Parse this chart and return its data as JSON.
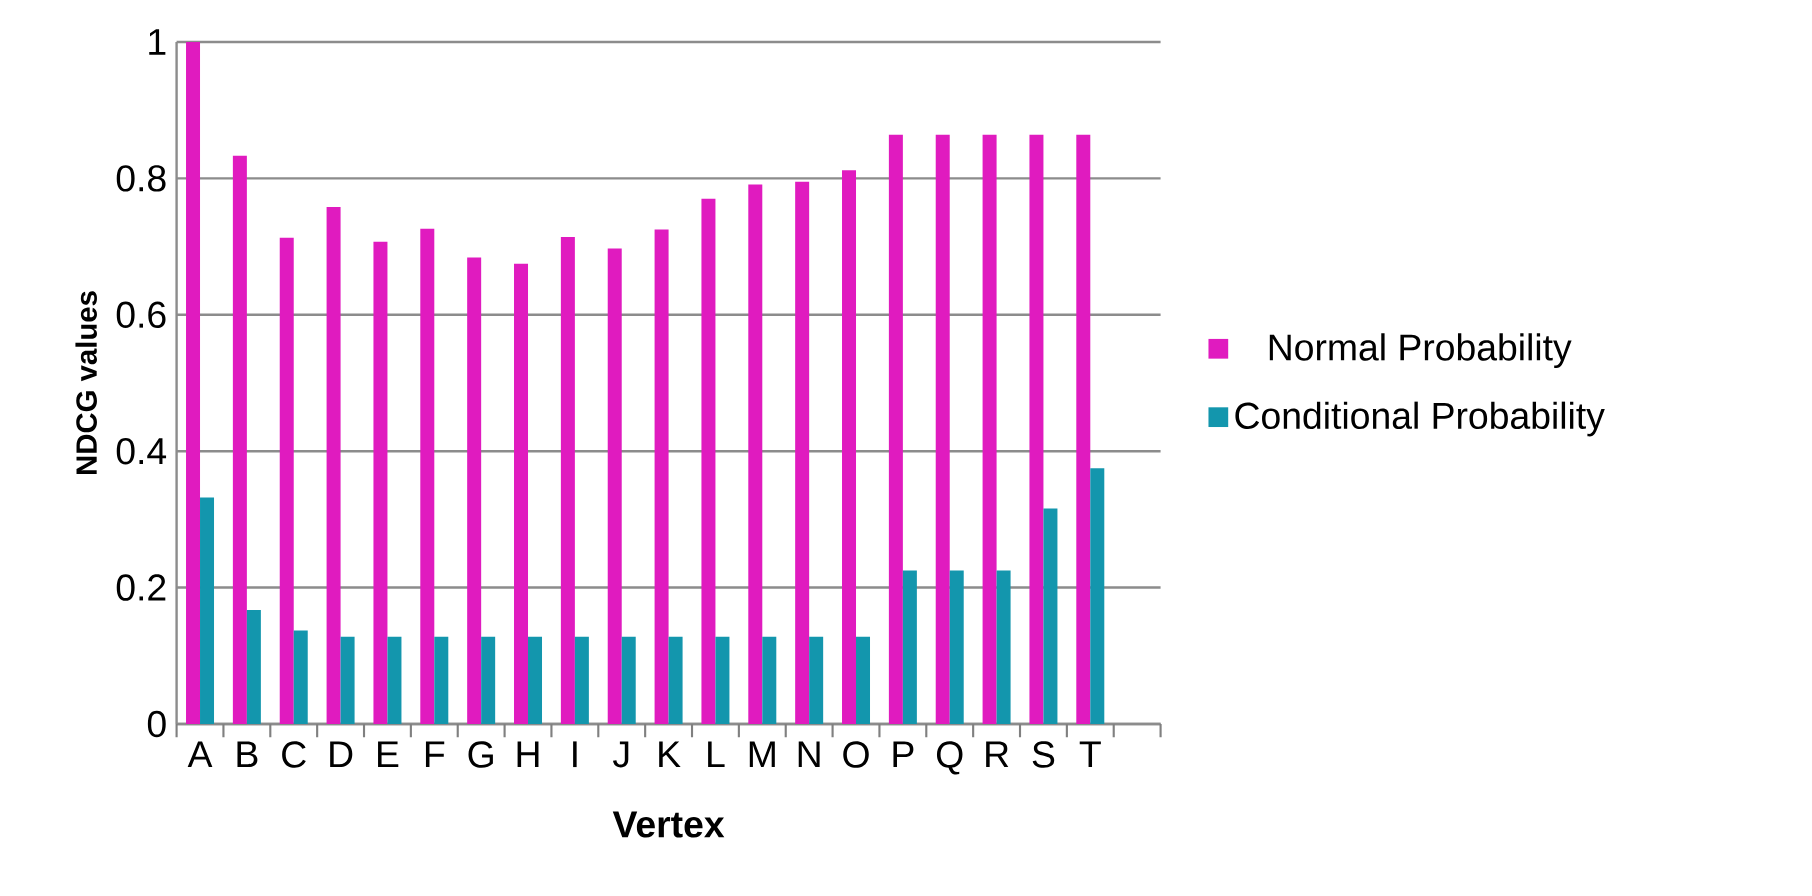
{
  "chart_data": {
    "type": "bar",
    "xlabel": "Vertex",
    "ylabel": "NDCG values",
    "categories": [
      "A",
      "B",
      "C",
      "D",
      "E",
      "F",
      "G",
      "H",
      "I",
      "J",
      "K",
      "L",
      "M",
      "N",
      "O",
      "P",
      "Q",
      "R",
      "S",
      "T",
      null
    ],
    "series": [
      {
        "name": "Normal Probability",
        "color": "#e01bbf",
        "values": [
          1.0,
          0.833,
          0.713,
          0.758,
          0.707,
          0.726,
          0.684,
          0.675,
          0.714,
          0.697,
          0.725,
          0.77,
          0.791,
          0.795,
          0.812,
          0.864,
          0.864,
          0.864,
          0.864,
          0.864,
          null
        ]
      },
      {
        "name": "Conditional Probability",
        "color": "#1396ad",
        "values": [
          0.332,
          0.167,
          0.137,
          0.128,
          0.128,
          0.128,
          0.128,
          0.128,
          0.128,
          0.128,
          0.128,
          0.128,
          0.128,
          0.128,
          0.128,
          0.225,
          0.225,
          0.225,
          0.316,
          0.375,
          null
        ]
      }
    ],
    "ylim": [
      0,
      1
    ],
    "yticks": [
      0,
      0.2,
      0.4,
      0.6,
      0.8,
      1
    ],
    "grid": "y",
    "legend": "right"
  }
}
